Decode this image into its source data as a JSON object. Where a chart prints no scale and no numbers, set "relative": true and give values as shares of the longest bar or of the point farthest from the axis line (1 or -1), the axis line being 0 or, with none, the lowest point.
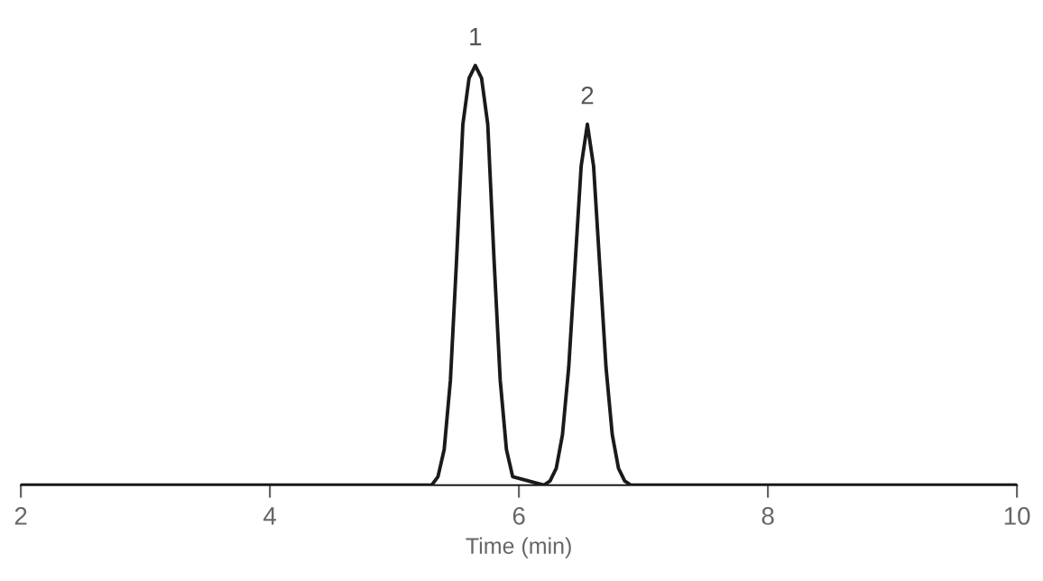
{
  "chart_data": {
    "type": "line",
    "relative": true,
    "xlabel": "Time (min)",
    "xlim": [
      2,
      10
    ],
    "xticks": [
      2,
      4,
      6,
      8,
      10
    ],
    "tick_labels": "x",
    "grid": false,
    "legend": false,
    "marker": "none",
    "line_style": "solid",
    "annotations": [
      {
        "text": "1",
        "x": 5.65,
        "y": 1
      },
      {
        "text": "2",
        "x": 6.55,
        "y": 0.86
      }
    ],
    "series": [
      {
        "color": "#1a1a1a",
        "x": [
          2,
          5.3,
          5.35,
          5.4,
          5.45,
          5.5,
          5.55,
          5.6,
          5.65,
          5.7,
          5.75,
          5.8,
          5.85,
          5.9,
          5.95,
          6.2,
          6.25,
          6.3,
          6.35,
          6.4,
          6.45,
          6.5,
          6.55,
          6.6,
          6.65,
          6.7,
          6.75,
          6.8,
          6.85,
          6.9,
          10
        ],
        "values": [
          0,
          0,
          0.02,
          0.085,
          0.25,
          0.54,
          0.86,
          0.97,
          1,
          0.97,
          0.86,
          0.54,
          0.25,
          0.085,
          0.02,
          0,
          0.01,
          0.04,
          0.12,
          0.28,
          0.52,
          0.76,
          0.86,
          0.76,
          0.52,
          0.28,
          0.12,
          0.04,
          0.01,
          0,
          0
        ]
      }
    ]
  }
}
